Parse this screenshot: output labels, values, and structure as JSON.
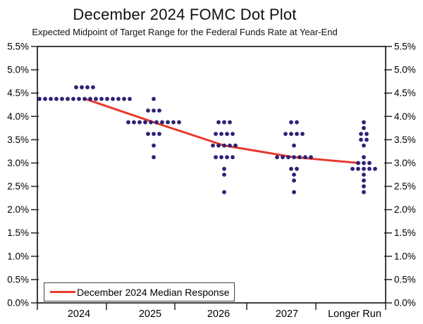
{
  "header": {
    "title": "December 2024 FOMC Dot Plot",
    "subtitle": "Expected Midpoint of Target Range for the Federal Funds Rate at Year-End"
  },
  "legend": {
    "median_label": "December 2024 Median Response"
  },
  "colors": {
    "dot": "#2d2276",
    "median_line": "#e8392d",
    "axis": "#262626",
    "text": "#000000",
    "background": "#ffffff"
  },
  "chart_data": {
    "type": "scatter",
    "title": "December 2024 FOMC Dot Plot",
    "subtitle": "Expected Midpoint of Target Range for the Federal Funds Rate at Year-End",
    "categories": [
      "2024",
      "2025",
      "2026",
      "2027",
      "Longer Run"
    ],
    "y_axis": {
      "min": 0.0,
      "max": 5.5,
      "tick_step": 0.5,
      "ticks": [
        {
          "value": 5.5,
          "label": "5.5%"
        },
        {
          "value": 5.0,
          "label": "5.0%"
        },
        {
          "value": 4.5,
          "label": "4.5%"
        },
        {
          "value": 4.0,
          "label": "4.0%"
        },
        {
          "value": 3.5,
          "label": "3.5%"
        },
        {
          "value": 3.0,
          "label": "3.0%"
        },
        {
          "value": 2.5,
          "label": "2.5%"
        },
        {
          "value": 2.0,
          "label": "2.0%"
        },
        {
          "value": 1.5,
          "label": "1.5%"
        },
        {
          "value": 1.0,
          "label": "1.0%"
        },
        {
          "value": 0.5,
          "label": "0.5%"
        },
        {
          "value": 0.0,
          "label": "0.0%"
        }
      ],
      "shown_on_both_sides": true
    },
    "columns": [
      {
        "label": "2024",
        "dots": [
          {
            "rate": 4.625,
            "count": 4
          },
          {
            "rate": 4.375,
            "count": 17
          }
        ]
      },
      {
        "label": "2025",
        "dots": [
          {
            "rate": 4.375,
            "count": 1
          },
          {
            "rate": 4.125,
            "count": 3
          },
          {
            "rate": 3.875,
            "count": 10
          },
          {
            "rate": 3.625,
            "count": 3
          },
          {
            "rate": 3.375,
            "count": 1
          },
          {
            "rate": 3.125,
            "count": 1
          }
        ]
      },
      {
        "label": "2026",
        "dots": [
          {
            "rate": 3.875,
            "count": 3
          },
          {
            "rate": 3.625,
            "count": 4
          },
          {
            "rate": 3.375,
            "count": 5
          },
          {
            "rate": 3.125,
            "count": 4
          },
          {
            "rate": 2.875,
            "count": 1
          },
          {
            "rate": 2.75,
            "count": 1
          },
          {
            "rate": 2.375,
            "count": 1
          }
        ]
      },
      {
        "label": "2027",
        "dots": [
          {
            "rate": 3.875,
            "count": 2
          },
          {
            "rate": 3.625,
            "count": 4
          },
          {
            "rate": 3.375,
            "count": 1
          },
          {
            "rate": 3.125,
            "count": 7
          },
          {
            "rate": 2.875,
            "count": 2
          },
          {
            "rate": 2.75,
            "count": 1
          },
          {
            "rate": 2.625,
            "count": 1
          },
          {
            "rate": 2.375,
            "count": 1
          }
        ]
      },
      {
        "label": "Longer Run",
        "dots": [
          {
            "rate": 3.875,
            "count": 1
          },
          {
            "rate": 3.75,
            "count": 1
          },
          {
            "rate": 3.625,
            "count": 2
          },
          {
            "rate": 3.5,
            "count": 2
          },
          {
            "rate": 3.375,
            "count": 1
          },
          {
            "rate": 3.125,
            "count": 1
          },
          {
            "rate": 3.0,
            "count": 3
          },
          {
            "rate": 2.875,
            "count": 5
          },
          {
            "rate": 2.75,
            "count": 1
          },
          {
            "rate": 2.625,
            "count": 1
          },
          {
            "rate": 2.5,
            "count": 1
          },
          {
            "rate": 2.375,
            "count": 1
          }
        ]
      }
    ],
    "series": [
      {
        "name": "December 2024 Median Response",
        "type": "line",
        "values": [
          4.375,
          3.875,
          3.375,
          3.125,
          3.0
        ]
      }
    ],
    "legend_position": "bottom-left",
    "grid": false
  }
}
